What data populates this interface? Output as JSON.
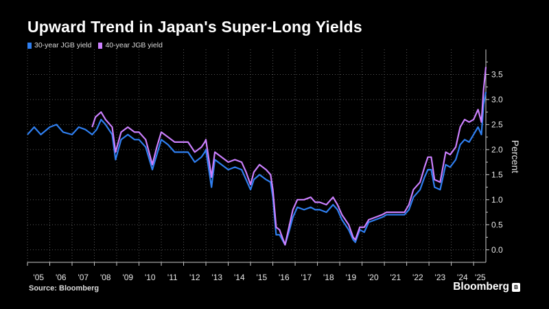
{
  "title": "Upward Trend in Japan's Super-Long Yields",
  "source": "Source: Bloomberg",
  "brand": "Bloomberg",
  "colors": {
    "background": "#000000",
    "series_30y": "#2f7ff0",
    "series_40y": "#cc80ff",
    "grid": "#5a5a5a",
    "axis": "#cfcfcf"
  },
  "chart_data": {
    "type": "line",
    "title": "Upward Trend in Japan's Super-Long Yields",
    "xlabel": "",
    "ylabel": "Percent",
    "x_ticks": [
      "'05",
      "'06",
      "'07",
      "'08",
      "'09",
      "'10",
      "'11",
      "'12",
      "'13",
      "'14",
      "'15",
      "'16",
      "'17",
      "'18",
      "'19",
      "'20",
      "'21",
      "'22",
      "'23",
      "'24",
      "'25"
    ],
    "y_ticks": [
      "0.0",
      "0.5",
      "1.0",
      "1.5",
      "2.0",
      "2.5",
      "3.0",
      "3.5"
    ],
    "ylim": [
      -0.25,
      4.0
    ],
    "xlim": [
      2005.0,
      2025.55
    ],
    "grid": "dotted",
    "legend": "top-left",
    "series": [
      {
        "name": "30-year JGB yield",
        "color": "#2f7ff0",
        "points": [
          [
            2005.0,
            2.3
          ],
          [
            2005.3,
            2.45
          ],
          [
            2005.6,
            2.3
          ],
          [
            2006.0,
            2.45
          ],
          [
            2006.3,
            2.5
          ],
          [
            2006.6,
            2.35
          ],
          [
            2007.0,
            2.3
          ],
          [
            2007.3,
            2.45
          ],
          [
            2007.6,
            2.4
          ],
          [
            2007.9,
            2.3
          ],
          [
            2008.1,
            2.4
          ],
          [
            2008.3,
            2.6
          ],
          [
            2008.5,
            2.5
          ],
          [
            2008.8,
            2.3
          ],
          [
            2008.95,
            1.8
          ],
          [
            2009.2,
            2.2
          ],
          [
            2009.5,
            2.3
          ],
          [
            2009.8,
            2.2
          ],
          [
            2010.0,
            2.2
          ],
          [
            2010.3,
            2.05
          ],
          [
            2010.6,
            1.6
          ],
          [
            2010.8,
            1.9
          ],
          [
            2011.0,
            2.2
          ],
          [
            2011.3,
            2.1
          ],
          [
            2011.6,
            1.95
          ],
          [
            2011.9,
            1.95
          ],
          [
            2012.2,
            1.95
          ],
          [
            2012.5,
            1.75
          ],
          [
            2012.8,
            1.85
          ],
          [
            2012.95,
            1.95
          ],
          [
            2013.0,
            2.0
          ],
          [
            2013.25,
            1.25
          ],
          [
            2013.4,
            1.8
          ],
          [
            2013.7,
            1.7
          ],
          [
            2014.0,
            1.6
          ],
          [
            2014.3,
            1.65
          ],
          [
            2014.6,
            1.6
          ],
          [
            2014.8,
            1.4
          ],
          [
            2015.0,
            1.2
          ],
          [
            2015.15,
            1.4
          ],
          [
            2015.4,
            1.5
          ],
          [
            2015.7,
            1.4
          ],
          [
            2015.9,
            1.35
          ],
          [
            2016.0,
            1.05
          ],
          [
            2016.15,
            0.3
          ],
          [
            2016.3,
            0.3
          ],
          [
            2016.55,
            0.1
          ],
          [
            2016.75,
            0.4
          ],
          [
            2016.9,
            0.65
          ],
          [
            2017.1,
            0.85
          ],
          [
            2017.4,
            0.8
          ],
          [
            2017.7,
            0.85
          ],
          [
            2017.9,
            0.8
          ],
          [
            2018.1,
            0.8
          ],
          [
            2018.4,
            0.75
          ],
          [
            2018.7,
            0.9
          ],
          [
            2018.9,
            0.8
          ],
          [
            2019.1,
            0.6
          ],
          [
            2019.4,
            0.4
          ],
          [
            2019.6,
            0.2
          ],
          [
            2019.7,
            0.15
          ],
          [
            2019.9,
            0.4
          ],
          [
            2020.1,
            0.35
          ],
          [
            2020.3,
            0.55
          ],
          [
            2020.6,
            0.6
          ],
          [
            2020.9,
            0.65
          ],
          [
            2021.1,
            0.7
          ],
          [
            2021.5,
            0.7
          ],
          [
            2021.9,
            0.7
          ],
          [
            2022.1,
            0.8
          ],
          [
            2022.3,
            1.05
          ],
          [
            2022.6,
            1.2
          ],
          [
            2022.8,
            1.45
          ],
          [
            2022.95,
            1.6
          ],
          [
            2023.1,
            1.6
          ],
          [
            2023.25,
            1.25
          ],
          [
            2023.5,
            1.2
          ],
          [
            2023.75,
            1.7
          ],
          [
            2023.95,
            1.65
          ],
          [
            2024.2,
            1.8
          ],
          [
            2024.4,
            2.1
          ],
          [
            2024.6,
            2.2
          ],
          [
            2024.8,
            2.15
          ],
          [
            2025.0,
            2.3
          ],
          [
            2025.2,
            2.45
          ],
          [
            2025.35,
            2.3
          ],
          [
            2025.45,
            2.9
          ],
          [
            2025.55,
            3.15
          ]
        ]
      },
      {
        "name": "40-year JGB yield",
        "color": "#cc80ff",
        "points": [
          [
            2007.9,
            2.45
          ],
          [
            2008.05,
            2.65
          ],
          [
            2008.3,
            2.75
          ],
          [
            2008.5,
            2.6
          ],
          [
            2008.8,
            2.45
          ],
          [
            2008.95,
            1.95
          ],
          [
            2009.2,
            2.35
          ],
          [
            2009.5,
            2.45
          ],
          [
            2009.8,
            2.35
          ],
          [
            2010.0,
            2.35
          ],
          [
            2010.3,
            2.2
          ],
          [
            2010.6,
            1.7
          ],
          [
            2010.8,
            2.05
          ],
          [
            2011.0,
            2.35
          ],
          [
            2011.3,
            2.25
          ],
          [
            2011.6,
            2.15
          ],
          [
            2011.9,
            2.15
          ],
          [
            2012.2,
            2.15
          ],
          [
            2012.5,
            1.95
          ],
          [
            2012.8,
            2.05
          ],
          [
            2012.95,
            2.15
          ],
          [
            2013.0,
            2.2
          ],
          [
            2013.25,
            1.45
          ],
          [
            2013.4,
            1.95
          ],
          [
            2013.7,
            1.85
          ],
          [
            2014.0,
            1.75
          ],
          [
            2014.3,
            1.8
          ],
          [
            2014.6,
            1.75
          ],
          [
            2014.8,
            1.55
          ],
          [
            2015.0,
            1.3
          ],
          [
            2015.15,
            1.55
          ],
          [
            2015.4,
            1.7
          ],
          [
            2015.7,
            1.6
          ],
          [
            2015.9,
            1.5
          ],
          [
            2016.0,
            1.2
          ],
          [
            2016.15,
            0.45
          ],
          [
            2016.3,
            0.4
          ],
          [
            2016.55,
            0.1
          ],
          [
            2016.75,
            0.5
          ],
          [
            2016.9,
            0.8
          ],
          [
            2017.1,
            1.0
          ],
          [
            2017.4,
            1.0
          ],
          [
            2017.7,
            1.05
          ],
          [
            2017.9,
            0.95
          ],
          [
            2018.1,
            0.95
          ],
          [
            2018.4,
            0.9
          ],
          [
            2018.7,
            1.05
          ],
          [
            2018.9,
            0.9
          ],
          [
            2019.1,
            0.7
          ],
          [
            2019.4,
            0.5
          ],
          [
            2019.6,
            0.25
          ],
          [
            2019.7,
            0.2
          ],
          [
            2019.9,
            0.45
          ],
          [
            2020.1,
            0.45
          ],
          [
            2020.3,
            0.6
          ],
          [
            2020.6,
            0.65
          ],
          [
            2020.9,
            0.7
          ],
          [
            2021.1,
            0.75
          ],
          [
            2021.5,
            0.75
          ],
          [
            2021.9,
            0.75
          ],
          [
            2022.1,
            0.9
          ],
          [
            2022.3,
            1.2
          ],
          [
            2022.6,
            1.35
          ],
          [
            2022.8,
            1.65
          ],
          [
            2022.95,
            1.85
          ],
          [
            2023.1,
            1.85
          ],
          [
            2023.25,
            1.4
          ],
          [
            2023.5,
            1.35
          ],
          [
            2023.75,
            1.95
          ],
          [
            2023.95,
            1.9
          ],
          [
            2024.2,
            2.05
          ],
          [
            2024.4,
            2.45
          ],
          [
            2024.6,
            2.6
          ],
          [
            2024.8,
            2.55
          ],
          [
            2025.0,
            2.6
          ],
          [
            2025.2,
            2.8
          ],
          [
            2025.35,
            2.55
          ],
          [
            2025.45,
            3.2
          ],
          [
            2025.55,
            3.65
          ]
        ]
      }
    ]
  }
}
